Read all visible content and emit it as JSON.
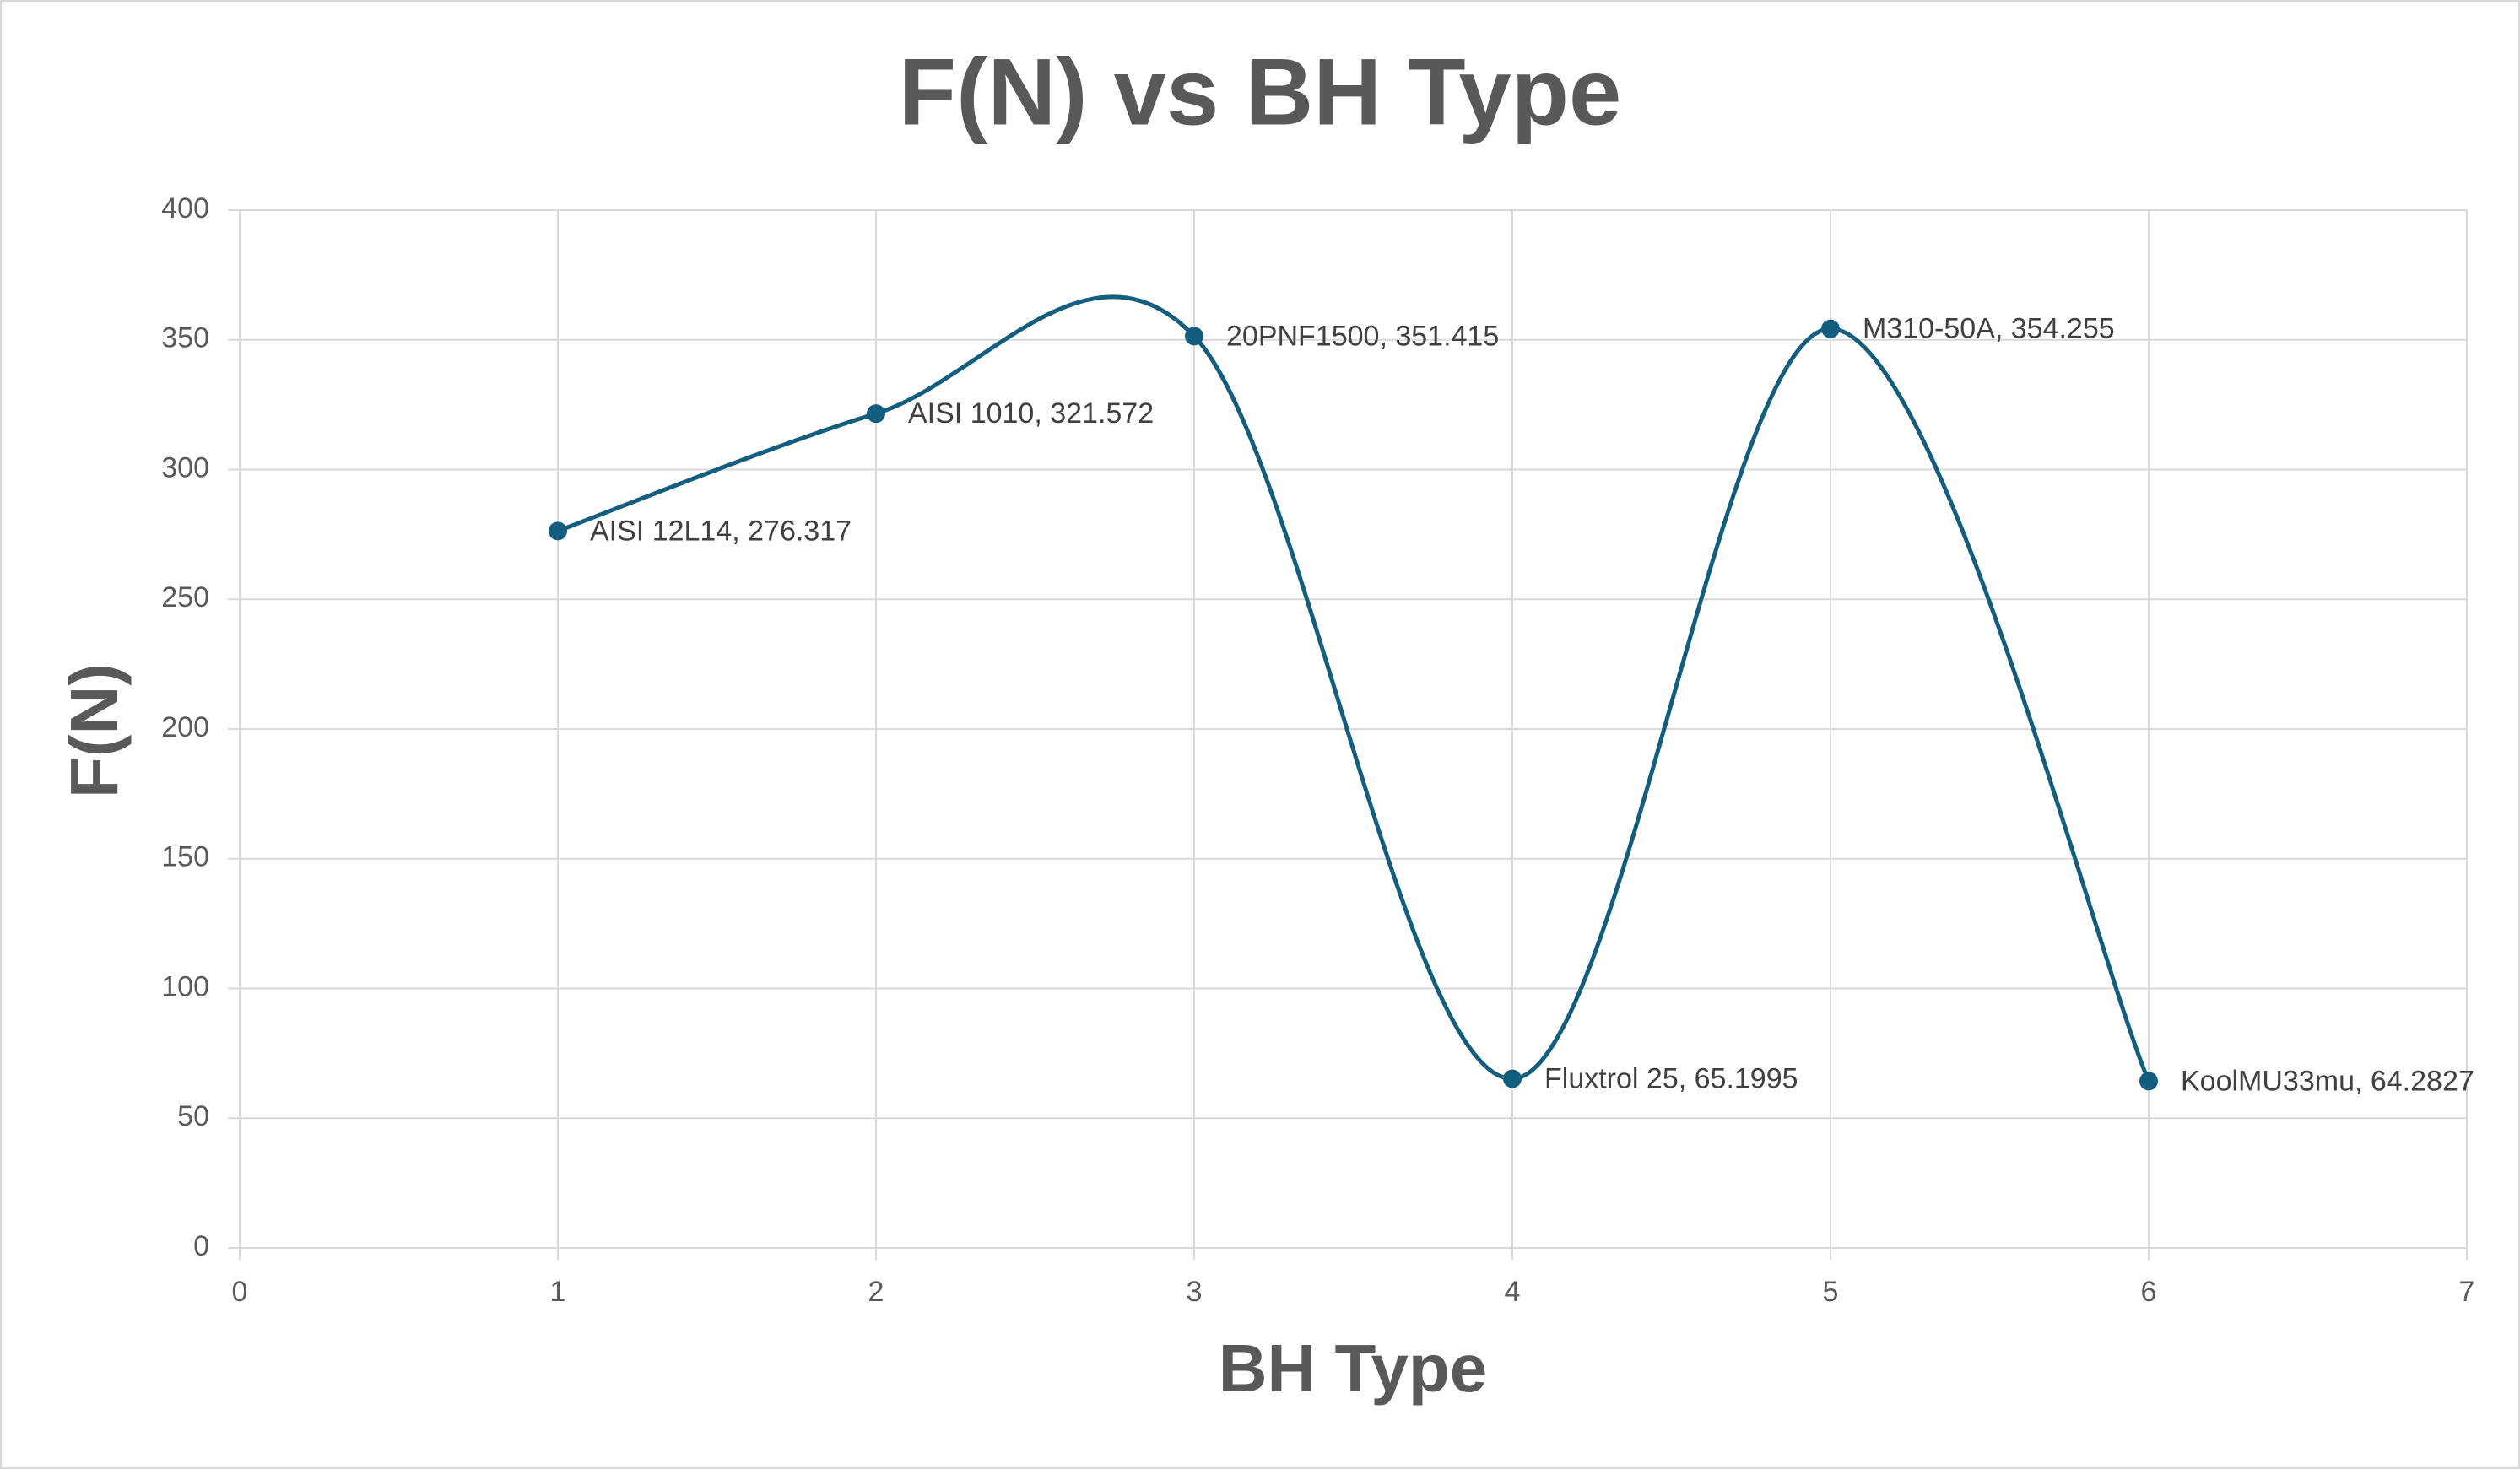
{
  "chart_data": {
    "type": "scatter",
    "title": "F(N) vs BH Type",
    "x_label": "BH Type",
    "y_label": "F(N)",
    "x": [
      1,
      2,
      3,
      4,
      5,
      6
    ],
    "series": [
      {
        "name": "F(N)",
        "color": "#135e7e",
        "values": [
          276.317,
          321.572,
          351.415,
          65.1995,
          354.255,
          64.2827
        ],
        "value_labels": [
          "AISI 12L14, 276.317",
          "AISI 1010, 321.572",
          "20PNF1500, 351.415",
          "Fluxtrol 25, 65.1995",
          "M310-50A, 354.255",
          "KoolMU33mu, 64.2827"
        ]
      }
    ],
    "smooth": true,
    "xlim": [
      0,
      7
    ],
    "xticks": [
      0,
      1,
      2,
      3,
      4,
      5,
      6,
      7
    ],
    "ylim": [
      0,
      400
    ],
    "yticks": [
      0,
      50,
      100,
      150,
      200,
      250,
      300,
      350,
      400
    ],
    "grid": true
  }
}
